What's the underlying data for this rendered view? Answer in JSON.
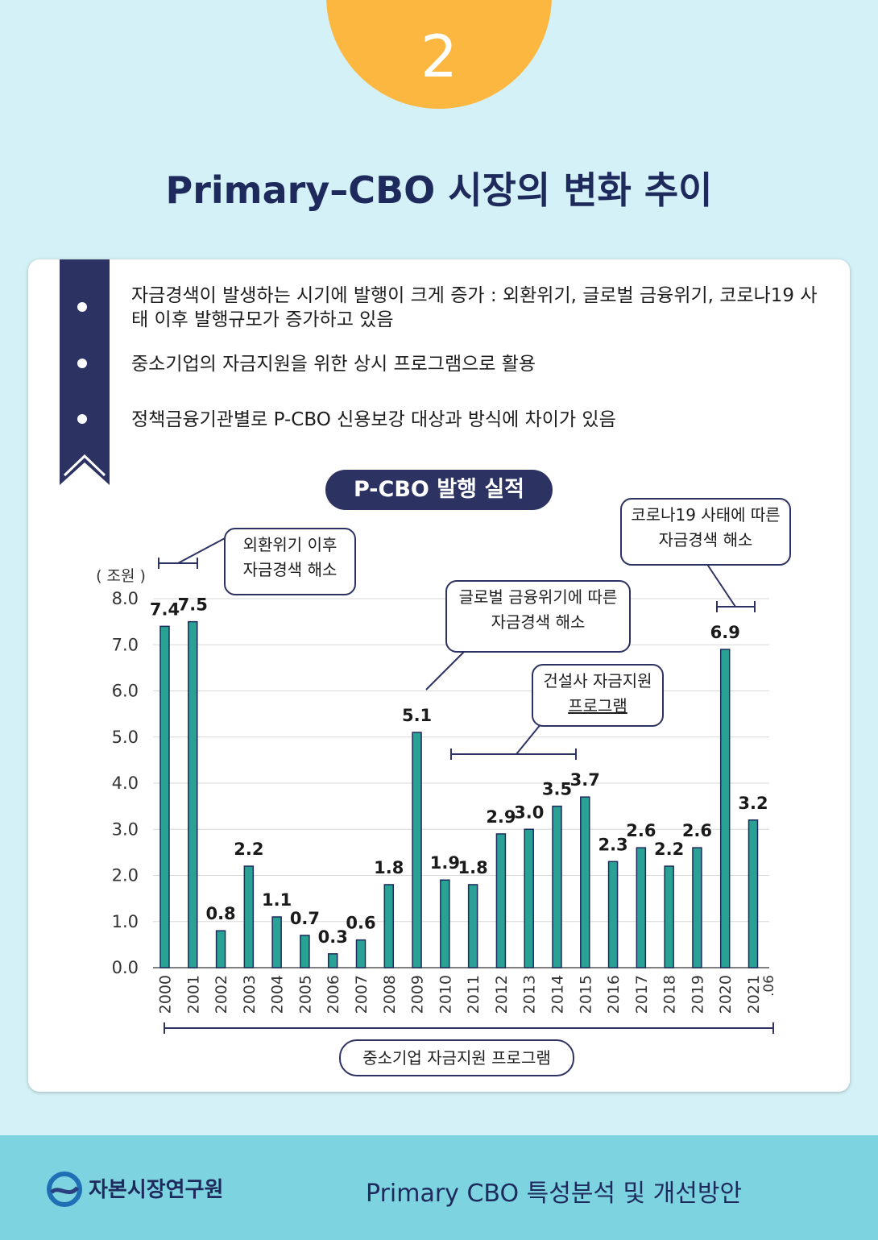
{
  "badge": {
    "number": "2"
  },
  "title": "Primary–CBO 시장의 변화 추이",
  "bullets": [
    "자금경색이 발생하는 시기에 발행이 크게 증가 : 외환위기, 글로벌 금융위기, 코로나19 사태 이후 발행규모가 증가하고 있음",
    "중소기업의 자금지원을 위한 상시 프로그램으로 활용",
    "정책금융기관별로 P-CBO 신용보강 대상과 방식에 차이가 있음"
  ],
  "chart_title": "P-CBO 발행 실적",
  "callouts": {
    "imf": [
      "외환위기 이후",
      "자금경색 해소"
    ],
    "gfc": [
      "글로벌 금융위기에 따른",
      "자금경색 해소"
    ],
    "construction": [
      "건설사 자금지원",
      "프로그램"
    ],
    "covid": [
      "코로나19 사태에 따른",
      "자금경색 해소"
    ]
  },
  "program_label": "중소기업 자금지원 프로그램",
  "footer": {
    "org": "자본시장연구원",
    "report": "Primary CBO 특성분석 및 개선방안"
  },
  "colors": {
    "bar": "#2aa195",
    "bar_border": "#1f2a5c",
    "navy": "#2c3262",
    "badge": "#fbb73f"
  },
  "chart_data": {
    "type": "bar",
    "unit_label": "( 조원 )",
    "categories": [
      "2000",
      "2001",
      "2002",
      "2003",
      "2004",
      "2005",
      "2006",
      "2007",
      "2008",
      "2009",
      "2010",
      "2011",
      "2012",
      "2013",
      "2014",
      "2015",
      "2016",
      "2017",
      "2018",
      "2019",
      "2020",
      "2021"
    ],
    "last_category_suffix": ".06",
    "values": [
      7.4,
      7.5,
      0.8,
      2.2,
      1.1,
      0.7,
      0.3,
      0.6,
      1.8,
      5.1,
      1.9,
      1.8,
      2.9,
      3.0,
      3.5,
      3.7,
      2.3,
      2.6,
      2.2,
      2.6,
      6.9,
      3.2
    ],
    "yticks": [
      "0.0",
      "1.0",
      "2.0",
      "3.0",
      "4.0",
      "5.0",
      "6.0",
      "7.0",
      "8.0"
    ],
    "ylim": [
      0,
      8
    ],
    "grid": true
  }
}
